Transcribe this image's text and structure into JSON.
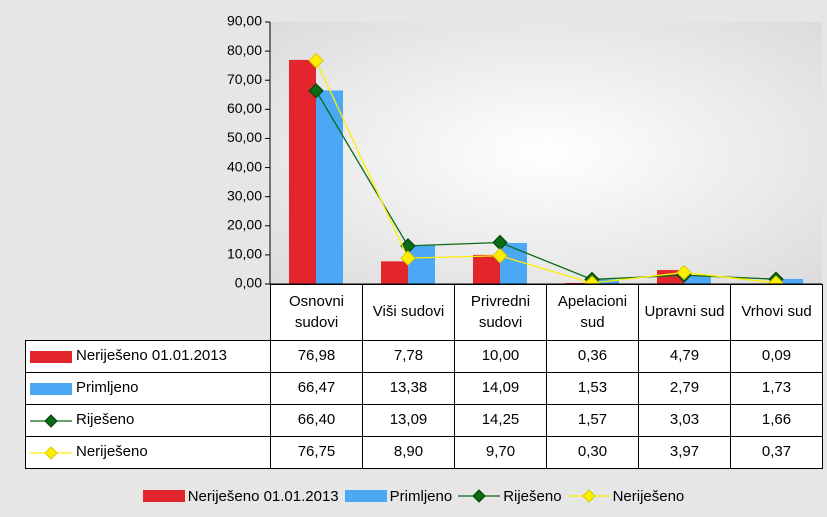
{
  "chart_data": {
    "type": "bar",
    "categories": [
      "Osnovni sudovi",
      "Viši sudovi",
      "Privredni sudovi",
      "Apelacioni sud",
      "Upravni sud",
      "Vrhovi sud"
    ],
    "series": [
      {
        "name": "Neriješeno 01.01.2013",
        "type": "bar",
        "color": "#e3262b",
        "values": [
          76.98,
          7.78,
          10.0,
          0.36,
          4.79,
          0.09
        ],
        "value_labels": [
          "76,98",
          "7,78",
          "10,00",
          "0,36",
          "4,79",
          "0,09"
        ]
      },
      {
        "name": "Primljeno",
        "type": "bar",
        "color": "#4aa8f5",
        "values": [
          66.47,
          13.38,
          14.09,
          1.53,
          2.79,
          1.73
        ],
        "value_labels": [
          "66,47",
          "13,38",
          "14,09",
          "1,53",
          "2,79",
          "1,73"
        ]
      },
      {
        "name": "Riješeno",
        "type": "line",
        "color": "#0b6b12",
        "values": [
          66.4,
          13.09,
          14.25,
          1.57,
          3.03,
          1.66
        ],
        "value_labels": [
          "66,40",
          "13,09",
          "14,25",
          "1,57",
          "3,03",
          "1,66"
        ]
      },
      {
        "name": "Neriješeno",
        "type": "line",
        "color": "#ffee00",
        "values": [
          76.75,
          8.9,
          9.7,
          0.3,
          3.97,
          0.37
        ],
        "value_labels": [
          "76,75",
          "8,90",
          "9,70",
          "0,30",
          "3,97",
          "0,37"
        ]
      }
    ],
    "ylim": [
      0,
      90
    ],
    "yticks": [
      {
        "value": 0,
        "label": "0,00"
      },
      {
        "value": 10,
        "label": "10,00"
      },
      {
        "value": 20,
        "label": "20,00"
      },
      {
        "value": 30,
        "label": "30,00"
      },
      {
        "value": 40,
        "label": "40,00"
      },
      {
        "value": 50,
        "label": "50,00"
      },
      {
        "value": 60,
        "label": "60,00"
      },
      {
        "value": 70,
        "label": "70,00"
      },
      {
        "value": 80,
        "label": "80,00"
      },
      {
        "value": 90,
        "label": "90,00"
      }
    ],
    "legend": "bottom"
  }
}
